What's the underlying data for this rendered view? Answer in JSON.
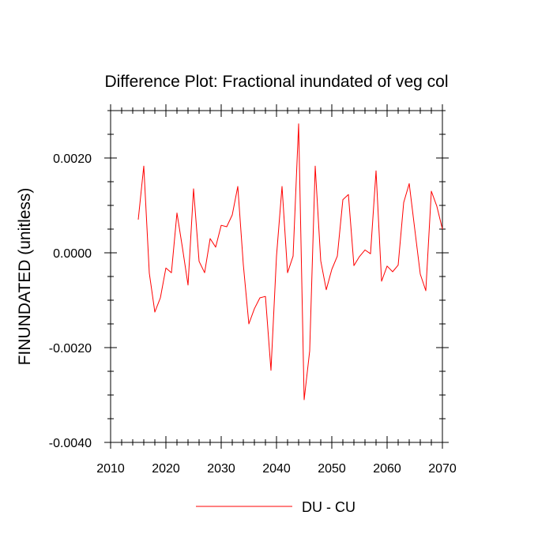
{
  "chart_data": {
    "type": "line",
    "title": "Difference Plot: Fractional inundated of veg col",
    "xlabel": "",
    "ylabel": "FINUNDATED  (unitless)",
    "xlim": [
      2010,
      2070
    ],
    "ylim": [
      -0.004,
      0.003
    ],
    "x_ticks": [
      2010,
      2020,
      2030,
      2040,
      2050,
      2060,
      2070
    ],
    "x_tick_labels": [
      "2010",
      "2020",
      "2030",
      "2040",
      "2050",
      "2060",
      "2070"
    ],
    "y_ticks": [
      -0.004,
      -0.002,
      0.0,
      0.002
    ],
    "y_tick_labels": [
      "-0.0040",
      "-0.0020",
      "0.0000",
      "0.0020"
    ],
    "legend": "bottom-center",
    "series": [
      {
        "name": "DU - CU",
        "color": "#ff0000",
        "x": [
          2015,
          2016,
          2017,
          2018,
          2019,
          2020,
          2021,
          2022,
          2023,
          2024,
          2025,
          2026,
          2027,
          2028,
          2029,
          2030,
          2031,
          2032,
          2033,
          2034,
          2035,
          2036,
          2037,
          2038,
          2039,
          2040,
          2041,
          2042,
          2043,
          2044,
          2045,
          2046,
          2047,
          2048,
          2049,
          2050,
          2051,
          2052,
          2053,
          2054,
          2055,
          2056,
          2057,
          2058,
          2059,
          2060,
          2061,
          2062,
          2063,
          2064,
          2065,
          2066,
          2067,
          2068,
          2069,
          2070
        ],
        "values": [
          0.0007,
          0.00183,
          -0.00043,
          -0.00125,
          -0.00095,
          -0.00032,
          -0.00042,
          0.00084,
          0.0001,
          -0.00068,
          0.00135,
          -0.00018,
          -0.00042,
          0.0003,
          0.00012,
          0.00058,
          0.00055,
          0.0008,
          0.0014,
          -0.00025,
          -0.0015,
          -0.00118,
          -0.00095,
          -0.00092,
          -0.00248,
          -7e-05,
          0.0014,
          -0.00042,
          -7e-05,
          0.00272,
          -0.0031,
          -0.00207,
          0.00183,
          -0.00017,
          -0.00078,
          -0.00035,
          -7e-05,
          0.00112,
          0.00123,
          -0.00027,
          -8e-05,
          6e-05,
          -2e-05,
          0.00173,
          -0.0006,
          -0.00028,
          -0.0004,
          -0.00026,
          0.00106,
          0.00146,
          0.0005,
          -0.00045,
          -0.0008,
          0.0013,
          0.00098,
          0.0005
        ]
      }
    ]
  }
}
